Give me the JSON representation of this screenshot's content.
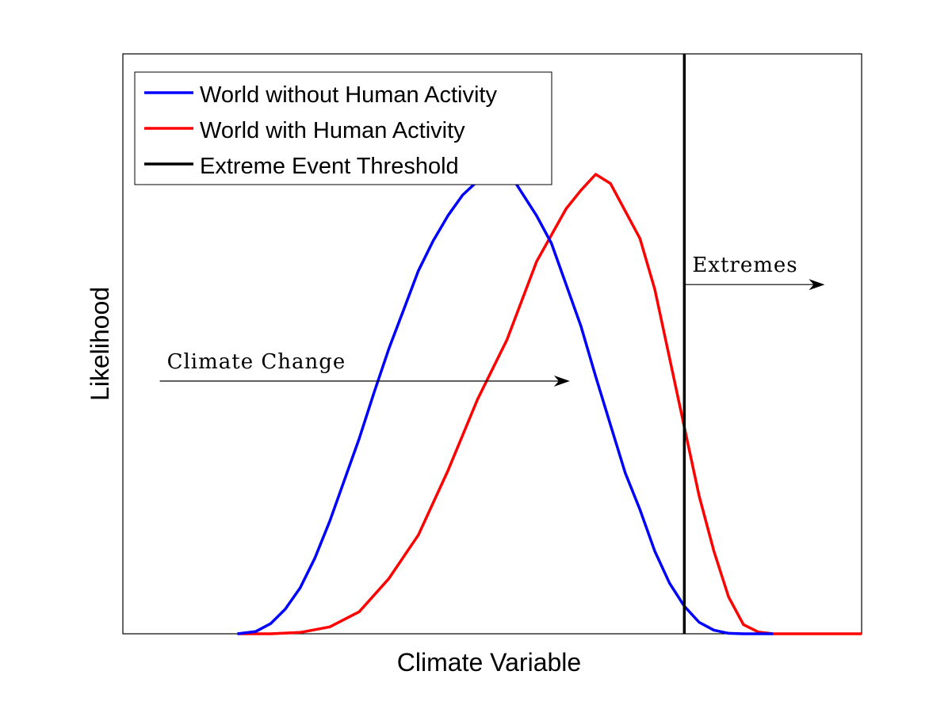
{
  "chart_data": {
    "type": "line",
    "title": "",
    "xlabel": "Climate Variable",
    "ylabel": "Likelihood",
    "xlim": [
      0,
      1
    ],
    "ylim": [
      0,
      1
    ],
    "grid": false,
    "legend_position": "top-left",
    "ticks": "none",
    "series": [
      {
        "name": "World without Human Activity",
        "color": "#0000ff",
        "x": [
          0.155,
          0.18,
          0.2,
          0.22,
          0.24,
          0.26,
          0.28,
          0.3,
          0.32,
          0.34,
          0.36,
          0.38,
          0.4,
          0.42,
          0.44,
          0.46,
          0.48,
          0.5,
          0.52,
          0.53,
          0.54,
          0.56,
          0.58,
          0.6,
          0.62,
          0.64,
          0.66,
          0.68,
          0.7,
          0.72,
          0.74,
          0.76,
          0.78,
          0.8,
          0.82,
          0.84,
          0.86,
          0.88
        ],
        "y": [
          0.0,
          0.005,
          0.022,
          0.054,
          0.1,
          0.165,
          0.245,
          0.335,
          0.425,
          0.525,
          0.62,
          0.705,
          0.79,
          0.855,
          0.91,
          0.955,
          0.985,
          1.0,
          0.995,
          0.985,
          0.96,
          0.91,
          0.85,
          0.76,
          0.67,
          0.56,
          0.455,
          0.35,
          0.27,
          0.18,
          0.11,
          0.06,
          0.025,
          0.008,
          0.001,
          0.0,
          0.0,
          0.0
        ]
      },
      {
        "name": "World with Human Activity",
        "color": "#ff0000",
        "x": [
          0.155,
          0.2,
          0.24,
          0.28,
          0.32,
          0.36,
          0.4,
          0.44,
          0.48,
          0.52,
          0.56,
          0.6,
          0.62,
          0.64,
          0.66,
          0.68,
          0.7,
          0.72,
          0.74,
          0.76,
          0.78,
          0.8,
          0.82,
          0.84,
          0.86,
          0.88,
          0.9,
          1.0
        ],
        "y": [
          0.0,
          0.0,
          0.003,
          0.015,
          0.048,
          0.12,
          0.215,
          0.355,
          0.51,
          0.64,
          0.81,
          0.925,
          0.965,
          1.0,
          0.98,
          0.92,
          0.86,
          0.75,
          0.6,
          0.45,
          0.3,
          0.18,
          0.08,
          0.02,
          0.004,
          0.0,
          0.0,
          0.0
        ]
      },
      {
        "name": "Extreme Event Threshold",
        "color": "#000000",
        "x": [
          0.76,
          0.76
        ],
        "y": [
          0.0,
          1.25
        ]
      }
    ],
    "annotations": [
      {
        "text": "Climate Change",
        "x_start": 0.05,
        "x_end": 0.605,
        "y": 0.55
      },
      {
        "text": "Extremes",
        "x_start": 0.76,
        "x_end": 0.95,
        "y": 0.76
      }
    ]
  }
}
